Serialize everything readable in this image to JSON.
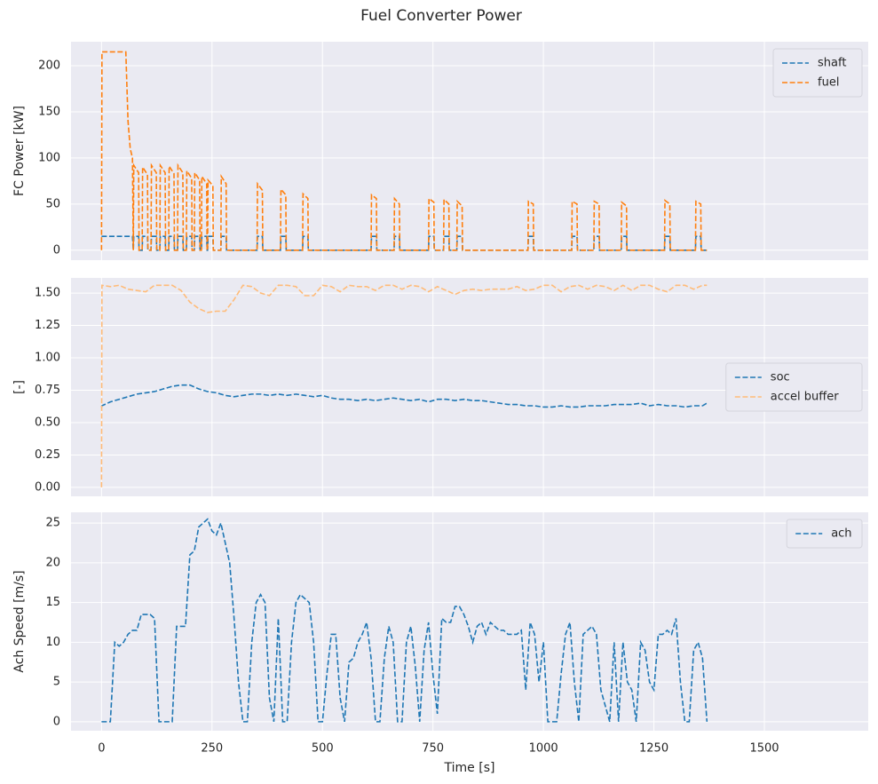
{
  "title": "Fuel Converter Power",
  "chart_data": [
    {
      "type": "line",
      "ylabel": "FC Power [kW]",
      "legend": "upper right",
      "grid": true,
      "xlim": [
        -69,
        1735
      ],
      "ylim": [
        -10.8,
        226
      ],
      "xticks": [
        0,
        250,
        500,
        750,
        1000,
        1250,
        1500
      ],
      "yticks": [
        0,
        50,
        100,
        150,
        200
      ],
      "x": [
        0,
        1,
        55,
        60,
        65,
        70,
        72,
        73,
        84,
        85,
        92,
        93,
        104,
        105,
        112,
        113,
        124,
        125,
        132,
        133,
        144,
        145,
        152,
        153,
        164,
        165,
        172,
        173,
        184,
        185,
        192,
        193,
        204,
        205,
        210,
        211,
        222,
        223,
        226,
        227,
        238,
        239,
        240,
        241,
        252,
        253,
        270,
        271,
        282,
        283,
        352,
        353,
        364,
        365,
        405,
        406,
        417,
        418,
        455,
        456,
        467,
        468,
        610,
        611,
        622,
        623,
        662,
        663,
        674,
        675,
        740,
        741,
        752,
        753,
        774,
        775,
        786,
        787,
        804,
        805,
        816,
        817,
        965,
        966,
        977,
        978,
        1064,
        1065,
        1076,
        1077,
        1114,
        1115,
        1126,
        1127,
        1176,
        1177,
        1188,
        1189,
        1274,
        1275,
        1286,
        1287,
        1344,
        1345,
        1356,
        1357,
        1370
      ],
      "series": [
        {
          "name": "shaft",
          "color": "#1f77b4",
          "values": [
            15,
            15,
            15,
            15,
            15,
            15,
            0,
            15,
            15,
            0,
            0,
            15,
            15,
            0,
            0,
            15,
            15,
            0,
            0,
            15,
            15,
            0,
            0,
            15,
            15,
            0,
            0,
            15,
            15,
            0,
            0,
            15,
            15,
            0,
            0,
            15,
            15,
            0,
            0,
            15,
            15,
            0,
            0,
            15,
            15,
            0,
            0,
            15,
            15,
            0,
            0,
            15,
            15,
            0,
            0,
            15,
            15,
            0,
            0,
            15,
            15,
            0,
            0,
            15,
            15,
            0,
            0,
            15,
            15,
            0,
            0,
            15,
            15,
            0,
            0,
            15,
            15,
            0,
            0,
            15,
            15,
            0,
            0,
            15,
            15,
            0,
            0,
            15,
            15,
            0,
            0,
            15,
            15,
            0,
            0,
            15,
            15,
            0,
            0,
            15,
            15,
            0,
            0,
            15,
            15,
            0,
            0
          ]
        },
        {
          "name": "fuel",
          "color": "#ff7f0e",
          "values": [
            0,
            215,
            215,
            140,
            110,
            100,
            0,
            92,
            84,
            0,
            0,
            90,
            82,
            0,
            0,
            92,
            84,
            0,
            0,
            92,
            84,
            0,
            0,
            91,
            83,
            0,
            0,
            92,
            84,
            0,
            0,
            86,
            78,
            0,
            0,
            84,
            76,
            0,
            0,
            80,
            72,
            0,
            0,
            76,
            70,
            0,
            0,
            80,
            72,
            0,
            0,
            72,
            65,
            0,
            0,
            66,
            60,
            0,
            0,
            61,
            56,
            0,
            0,
            60,
            56,
            0,
            0,
            56,
            50,
            0,
            0,
            56,
            52,
            0,
            0,
            55,
            50,
            0,
            0,
            53,
            48,
            0,
            0,
            53,
            50,
            0,
            0,
            53,
            50,
            0,
            0,
            53,
            50,
            0,
            0,
            52,
            48,
            0,
            0,
            54,
            50,
            0,
            0,
            53,
            50,
            0,
            0
          ]
        }
      ]
    },
    {
      "type": "line",
      "ylabel": "[-]",
      "legend": "center right",
      "grid": true,
      "xlim": [
        -69,
        1735
      ],
      "ylim": [
        -0.069,
        1.617
      ],
      "xticks": [
        0,
        250,
        500,
        750,
        1000,
        1250,
        1500
      ],
      "yticks": [
        {
          "value": 0,
          "label": "0.00"
        },
        {
          "value": 0.25,
          "label": "0.25"
        },
        {
          "value": 0.5,
          "label": "0.50"
        },
        {
          "value": 0.75,
          "label": "0.75"
        },
        {
          "value": 1,
          "label": "1.00"
        },
        {
          "value": 1.25,
          "label": "1.25"
        },
        {
          "value": 1.5,
          "label": "1.50"
        }
      ],
      "x": [
        0,
        1,
        20,
        40,
        60,
        80,
        100,
        120,
        140,
        160,
        180,
        200,
        220,
        240,
        260,
        280,
        300,
        320,
        340,
        360,
        380,
        400,
        420,
        440,
        460,
        480,
        500,
        520,
        540,
        560,
        580,
        600,
        620,
        640,
        660,
        680,
        700,
        720,
        740,
        760,
        780,
        800,
        820,
        840,
        860,
        880,
        900,
        920,
        940,
        960,
        980,
        1000,
        1020,
        1040,
        1060,
        1080,
        1100,
        1120,
        1140,
        1160,
        1180,
        1200,
        1220,
        1240,
        1260,
        1280,
        1300,
        1320,
        1340,
        1360,
        1370
      ],
      "series": [
        {
          "name": "soc",
          "color": "#1f77b4",
          "values": [
            0.62,
            0.63,
            0.66,
            0.68,
            0.7,
            0.72,
            0.73,
            0.74,
            0.76,
            0.78,
            0.79,
            0.79,
            0.76,
            0.74,
            0.73,
            0.71,
            0.7,
            0.71,
            0.72,
            0.72,
            0.71,
            0.72,
            0.71,
            0.72,
            0.71,
            0.7,
            0.71,
            0.69,
            0.68,
            0.68,
            0.67,
            0.68,
            0.67,
            0.68,
            0.69,
            0.68,
            0.67,
            0.68,
            0.66,
            0.68,
            0.68,
            0.67,
            0.68,
            0.67,
            0.67,
            0.66,
            0.65,
            0.64,
            0.64,
            0.63,
            0.63,
            0.62,
            0.62,
            0.63,
            0.62,
            0.62,
            0.63,
            0.63,
            0.63,
            0.64,
            0.64,
            0.64,
            0.65,
            0.63,
            0.64,
            0.63,
            0.63,
            0.62,
            0.63,
            0.63,
            0.65
          ]
        },
        {
          "name": "accel buffer",
          "color": "#ffbb78",
          "values": [
            0,
            1.56,
            1.55,
            1.56,
            1.53,
            1.52,
            1.51,
            1.56,
            1.56,
            1.56,
            1.52,
            1.43,
            1.38,
            1.35,
            1.36,
            1.36,
            1.45,
            1.56,
            1.55,
            1.5,
            1.48,
            1.56,
            1.56,
            1.55,
            1.48,
            1.48,
            1.56,
            1.55,
            1.51,
            1.56,
            1.55,
            1.55,
            1.52,
            1.56,
            1.56,
            1.53,
            1.56,
            1.55,
            1.51,
            1.55,
            1.52,
            1.49,
            1.52,
            1.53,
            1.52,
            1.53,
            1.53,
            1.53,
            1.55,
            1.52,
            1.53,
            1.56,
            1.56,
            1.51,
            1.55,
            1.56,
            1.53,
            1.56,
            1.55,
            1.52,
            1.56,
            1.52,
            1.56,
            1.56,
            1.53,
            1.51,
            1.56,
            1.56,
            1.53,
            1.56,
            1.56
          ]
        }
      ]
    },
    {
      "type": "line",
      "ylabel": "Ach Speed [m/s]",
      "xlabel": "Time [s]",
      "legend": "upper right",
      "grid": true,
      "xlim": [
        -69,
        1735
      ],
      "ylim": [
        -1.13,
        26.35
      ],
      "xticks": [
        0,
        250,
        500,
        750,
        1000,
        1250,
        1500
      ],
      "yticks": [
        0,
        5,
        10,
        15,
        20,
        25
      ],
      "x": [
        0,
        10,
        20,
        30,
        40,
        50,
        60,
        70,
        80,
        90,
        100,
        110,
        120,
        130,
        140,
        150,
        160,
        170,
        180,
        190,
        200,
        210,
        220,
        230,
        240,
        250,
        260,
        270,
        280,
        290,
        300,
        310,
        320,
        330,
        340,
        350,
        360,
        370,
        380,
        390,
        400,
        410,
        420,
        430,
        440,
        450,
        460,
        470,
        480,
        490,
        500,
        510,
        520,
        530,
        540,
        550,
        560,
        570,
        580,
        590,
        600,
        610,
        620,
        630,
        640,
        650,
        660,
        670,
        680,
        690,
        700,
        710,
        720,
        730,
        740,
        750,
        760,
        770,
        780,
        790,
        800,
        810,
        820,
        830,
        840,
        850,
        860,
        870,
        880,
        890,
        900,
        910,
        920,
        930,
        940,
        950,
        960,
        970,
        980,
        990,
        1000,
        1010,
        1020,
        1030,
        1040,
        1050,
        1060,
        1070,
        1080,
        1090,
        1100,
        1110,
        1120,
        1130,
        1140,
        1150,
        1160,
        1170,
        1180,
        1190,
        1200,
        1210,
        1220,
        1230,
        1240,
        1250,
        1260,
        1270,
        1280,
        1290,
        1300,
        1310,
        1320,
        1330,
        1340,
        1350,
        1360,
        1370
      ],
      "series": [
        {
          "name": "ach",
          "color": "#1f77b4",
          "values": [
            0,
            0,
            0,
            10,
            9.5,
            10,
            11,
            11.5,
            11.5,
            13.5,
            13.5,
            13.5,
            13,
            0,
            0,
            0,
            0,
            12,
            12,
            12,
            21,
            21.5,
            24.5,
            25,
            25.5,
            24,
            23.5,
            25,
            22.5,
            20,
            13,
            5,
            0,
            0,
            10,
            15,
            16,
            15,
            3,
            0,
            13,
            0,
            0,
            10,
            15,
            16,
            15.5,
            15,
            10,
            0,
            0,
            6,
            11,
            11,
            3,
            0,
            7.5,
            8,
            10,
            11,
            12.5,
            8,
            0,
            0,
            8,
            12,
            10,
            0,
            0,
            10,
            12,
            7,
            0,
            9,
            12.5,
            6,
            1,
            13,
            12.5,
            12.5,
            14.5,
            14.5,
            13.5,
            12,
            10,
            12,
            12.5,
            11,
            12.5,
            12,
            11.5,
            11.5,
            11,
            11,
            11,
            11.5,
            4,
            12.5,
            11,
            5,
            10,
            0,
            0,
            0,
            6,
            11,
            12.5,
            5,
            0,
            11,
            11.5,
            12,
            11,
            4,
            2,
            0,
            10,
            0,
            10,
            5,
            4,
            0,
            10,
            9,
            5,
            4,
            11,
            11,
            11.5,
            11,
            13,
            5,
            0,
            0,
            9,
            10,
            8,
            0
          ]
        }
      ]
    }
  ]
}
